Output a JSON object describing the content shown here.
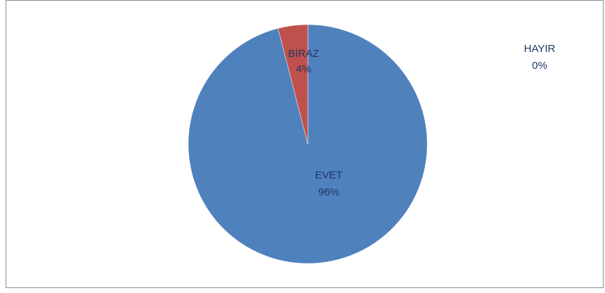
{
  "chart_data": {
    "type": "pie",
    "categories": [
      "EVET",
      "BİRAZ",
      "HAYIR"
    ],
    "values": [
      96,
      4,
      0
    ],
    "data_labels": [
      {
        "category": "EVET",
        "percent": "96%"
      },
      {
        "category": "BİRAZ",
        "percent": "4%"
      },
      {
        "category": "HAYIR",
        "percent": "0%"
      }
    ],
    "colors": [
      "#4F81BD",
      "#C0504D",
      "#9BBB59"
    ],
    "label_color": "#1F3864",
    "start_angle_deg": 0,
    "direction": "clockwise",
    "legend": "none"
  }
}
